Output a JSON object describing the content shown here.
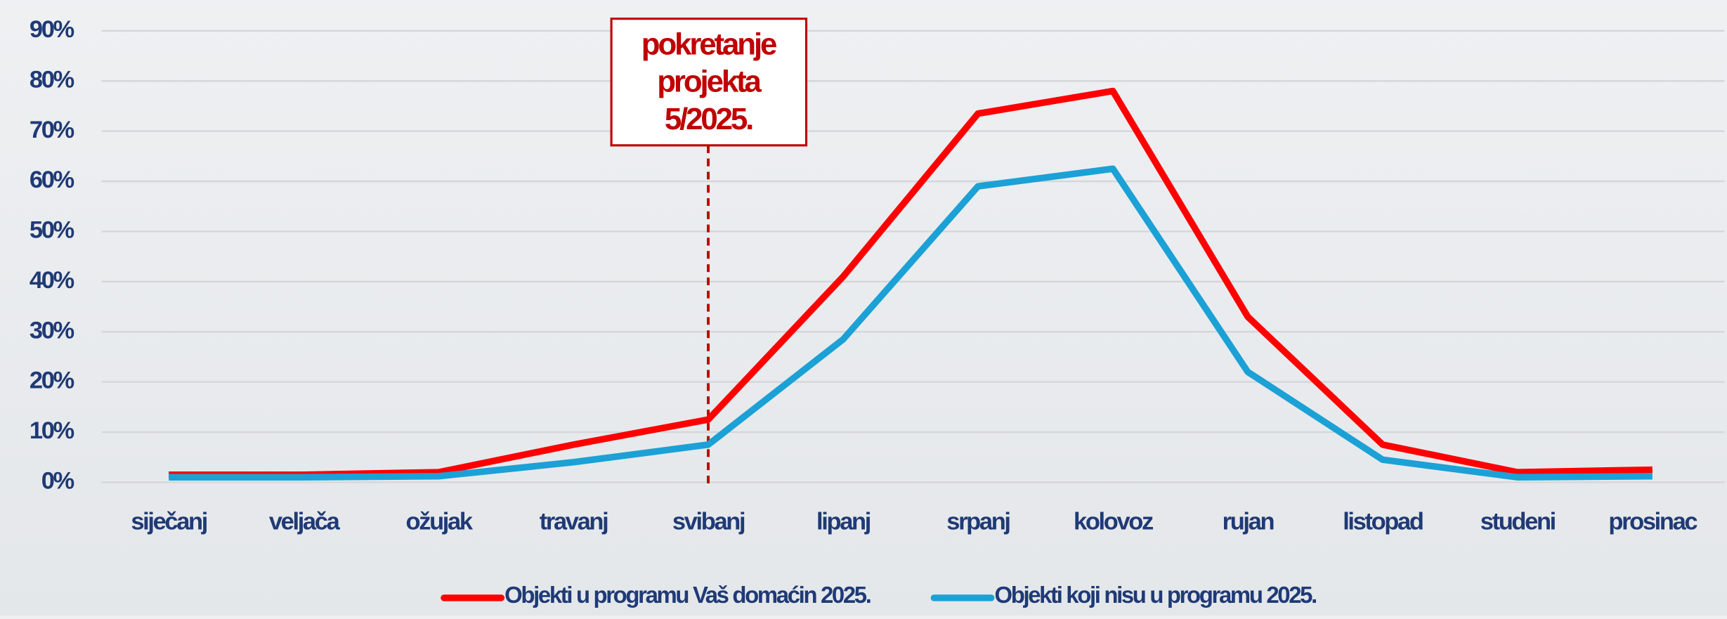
{
  "chart_data": {
    "type": "line",
    "categories": [
      "siječanj",
      "veljača",
      "ožujak",
      "travanj",
      "svibanj",
      "lipanj",
      "srpanj",
      "kolovoz",
      "rujan",
      "listopad",
      "studeni",
      "prosinac"
    ],
    "series": [
      {
        "name": "Objekti u programu Vaš domaćin 2025.",
        "color": "#ff0000",
        "values": [
          1.5,
          1.5,
          2,
          7.5,
          12.5,
          41,
          73.5,
          78,
          33,
          7.5,
          2,
          2.5
        ]
      },
      {
        "name": "Objekti koji nisu u programu 2025.",
        "color": "#1ba1d6",
        "values": [
          1,
          1,
          1.2,
          4,
          7.5,
          28.5,
          59,
          62.5,
          22,
          4.5,
          1,
          1.2
        ]
      }
    ],
    "ylim": [
      0,
      90
    ],
    "yticks": [
      {
        "value": 0,
        "label": "0%"
      },
      {
        "value": 10,
        "label": "10%"
      },
      {
        "value": 20,
        "label": "20%"
      },
      {
        "value": 30,
        "label": "30%"
      },
      {
        "value": 40,
        "label": "40%"
      },
      {
        "value": 50,
        "label": "50%"
      },
      {
        "value": 60,
        "label": "60%"
      },
      {
        "value": 70,
        "label": "70%"
      },
      {
        "value": 80,
        "label": "80%"
      },
      {
        "value": 90,
        "label": "90%"
      }
    ],
    "grid": true,
    "annotation": {
      "lines": [
        "pokretanje",
        "projekta",
        "5/2025."
      ],
      "color": "#c00000"
    }
  }
}
